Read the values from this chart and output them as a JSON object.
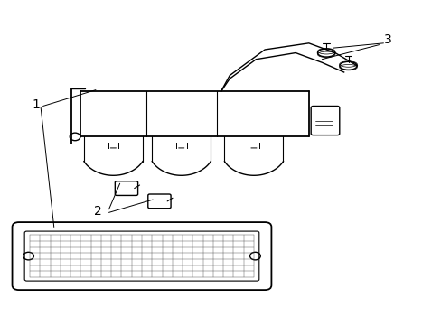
{
  "bg_color": "#ffffff",
  "line_color": "#000000",
  "fig_width": 4.89,
  "fig_height": 3.6,
  "dpi": 100,
  "labels": {
    "1": [
      0.08,
      0.62
    ],
    "2": [
      0.22,
      0.35
    ],
    "3": [
      0.88,
      0.88
    ]
  }
}
